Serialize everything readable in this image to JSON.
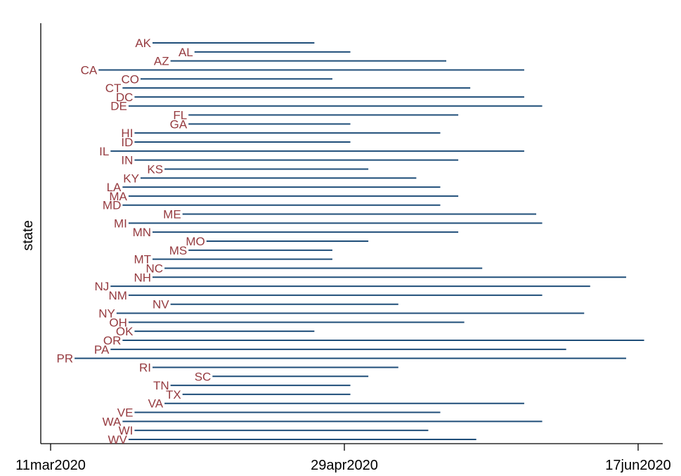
{
  "chart_data": {
    "type": "range-bar",
    "ylabel": "state",
    "xlabel": "",
    "x_ticks": [
      "11mar2020",
      "29apr2020",
      "17jun2020"
    ],
    "xlim": [
      "2020-03-11",
      "2020-06-17"
    ],
    "grid": false,
    "legend": "none",
    "colors": {
      "line": "#1f4e79",
      "label": "#953a3f",
      "axis": "#000000"
    },
    "series": [
      {
        "state": "AK",
        "start": "2020-03-28",
        "end": "2020-04-24"
      },
      {
        "state": "AL",
        "start": "2020-04-04",
        "end": "2020-04-30"
      },
      {
        "state": "AZ",
        "start": "2020-03-31",
        "end": "2020-05-16"
      },
      {
        "state": "CA",
        "start": "2020-03-19",
        "end": "2020-05-29"
      },
      {
        "state": "CO",
        "start": "2020-03-26",
        "end": "2020-04-27"
      },
      {
        "state": "CT",
        "start": "2020-03-23",
        "end": "2020-05-20"
      },
      {
        "state": "DC",
        "start": "2020-03-25",
        "end": "2020-05-29"
      },
      {
        "state": "DE",
        "start": "2020-03-24",
        "end": "2020-06-01"
      },
      {
        "state": "FL",
        "start": "2020-04-03",
        "end": "2020-05-18"
      },
      {
        "state": "GA",
        "start": "2020-04-03",
        "end": "2020-04-30"
      },
      {
        "state": "HI",
        "start": "2020-03-25",
        "end": "2020-05-15"
      },
      {
        "state": "ID",
        "start": "2020-03-25",
        "end": "2020-04-30"
      },
      {
        "state": "IL",
        "start": "2020-03-21",
        "end": "2020-05-29"
      },
      {
        "state": "IN",
        "start": "2020-03-25",
        "end": "2020-05-18"
      },
      {
        "state": "KS",
        "start": "2020-03-30",
        "end": "2020-05-03"
      },
      {
        "state": "KY",
        "start": "2020-03-26",
        "end": "2020-05-11"
      },
      {
        "state": "LA",
        "start": "2020-03-23",
        "end": "2020-05-15"
      },
      {
        "state": "MA",
        "start": "2020-03-24",
        "end": "2020-05-18"
      },
      {
        "state": "MD",
        "start": "2020-03-23",
        "end": "2020-05-15"
      },
      {
        "state": "ME",
        "start": "2020-04-02",
        "end": "2020-05-31"
      },
      {
        "state": "MI",
        "start": "2020-03-24",
        "end": "2020-06-01"
      },
      {
        "state": "MN",
        "start": "2020-03-28",
        "end": "2020-05-18"
      },
      {
        "state": "MO",
        "start": "2020-04-06",
        "end": "2020-05-03"
      },
      {
        "state": "MS",
        "start": "2020-04-03",
        "end": "2020-04-27"
      },
      {
        "state": "MT",
        "start": "2020-03-28",
        "end": "2020-04-27"
      },
      {
        "state": "NC",
        "start": "2020-03-30",
        "end": "2020-05-22"
      },
      {
        "state": "NH",
        "start": "2020-03-28",
        "end": "2020-06-15"
      },
      {
        "state": "NJ",
        "start": "2020-03-21",
        "end": "2020-06-09"
      },
      {
        "state": "NM",
        "start": "2020-03-24",
        "end": "2020-06-01"
      },
      {
        "state": "NV",
        "start": "2020-03-31",
        "end": "2020-05-08"
      },
      {
        "state": "NY",
        "start": "2020-03-22",
        "end": "2020-06-08"
      },
      {
        "state": "OH",
        "start": "2020-03-24",
        "end": "2020-05-19"
      },
      {
        "state": "OK",
        "start": "2020-03-25",
        "end": "2020-04-24"
      },
      {
        "state": "OR",
        "start": "2020-03-23",
        "end": "2020-06-18"
      },
      {
        "state": "PA",
        "start": "2020-03-21",
        "end": "2020-06-05"
      },
      {
        "state": "PR",
        "start": "2020-03-15",
        "end": "2020-06-15"
      },
      {
        "state": "RI",
        "start": "2020-03-28",
        "end": "2020-05-08"
      },
      {
        "state": "SC",
        "start": "2020-04-07",
        "end": "2020-05-03"
      },
      {
        "state": "TN",
        "start": "2020-03-31",
        "end": "2020-04-30"
      },
      {
        "state": "TX",
        "start": "2020-04-02",
        "end": "2020-04-30"
      },
      {
        "state": "VA",
        "start": "2020-03-30",
        "end": "2020-05-29"
      },
      {
        "state": "VE",
        "start": "2020-03-25",
        "end": "2020-05-15"
      },
      {
        "state": "WA",
        "start": "2020-03-23",
        "end": "2020-06-01"
      },
      {
        "state": "WI",
        "start": "2020-03-25",
        "end": "2020-05-13"
      },
      {
        "state": "WV",
        "start": "2020-03-24",
        "end": "2020-05-21"
      }
    ]
  }
}
